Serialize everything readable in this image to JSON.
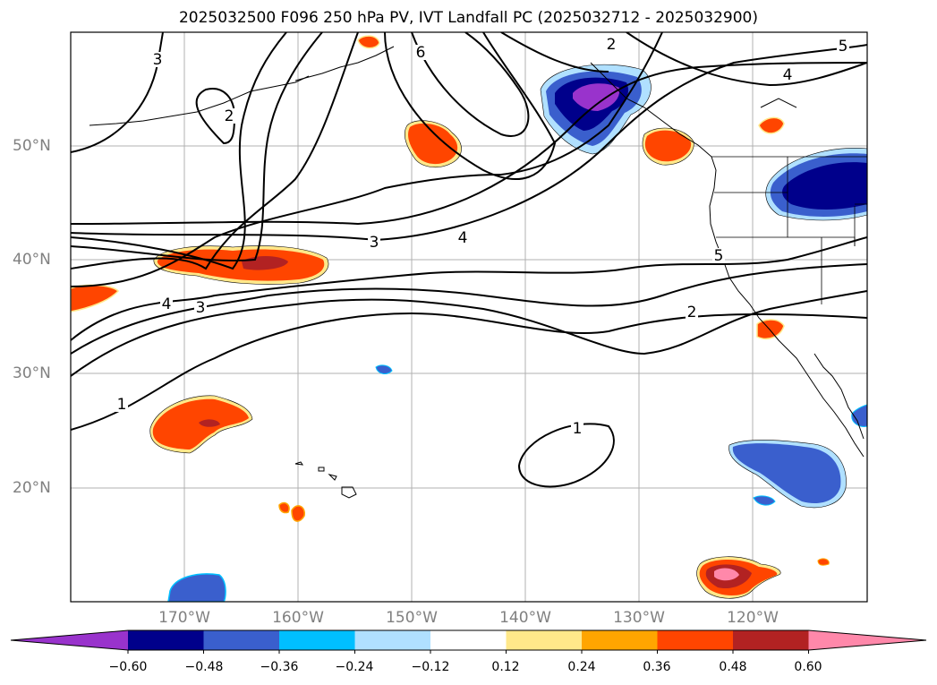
{
  "title": "2025032500 F096 250 hPa PV, IVT Landfall PC (2025032712 - 2025032900)",
  "lon_labels": [
    "170°W",
    "160°W",
    "150°W",
    "140°W",
    "130°W",
    "120°W"
  ],
  "lat_labels": [
    "50°N",
    "40°N",
    "30°N",
    "20°N"
  ],
  "contour_labels": [
    "3",
    "2",
    "6",
    "2",
    "4",
    "5",
    "3",
    "4",
    "4",
    "3",
    "5",
    "2",
    "1",
    "1"
  ],
  "colorbar": {
    "ticks": [
      "−0.60",
      "−0.48",
      "−0.36",
      "−0.24",
      "−0.12",
      "0.12",
      "0.24",
      "0.36",
      "0.48",
      "0.60"
    ],
    "colors": [
      "#9933cc",
      "#00008b",
      "#3a5fcd",
      "#00bfff",
      "#b0e0ff",
      "#ffffff",
      "#ffe88a",
      "#ffa500",
      "#ff4500",
      "#b22222",
      "#ff88aa"
    ]
  }
}
